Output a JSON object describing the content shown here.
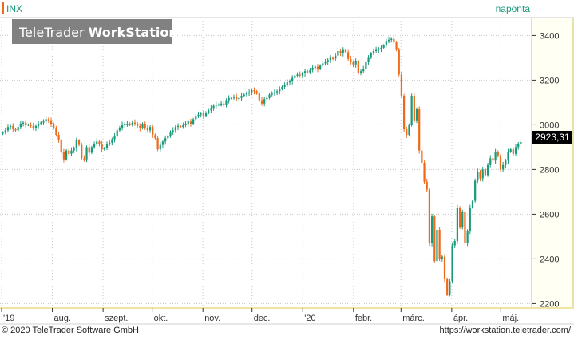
{
  "header": {
    "ticker": "INX",
    "interval": "naponta",
    "logo_regular": "TeleTrader ",
    "logo_bold": "WorkStation"
  },
  "footer": {
    "copyright": "© 2020 TeleTrader Software GmbH",
    "website": "https://workstation.teletrader.com/"
  },
  "colors": {
    "up": "#1a9a7a",
    "down": "#ee6a1a",
    "grid": "#c8c8c8",
    "axis_highlight": "#f2e8a8",
    "logo_bg": "#7a7a7a",
    "price_box": "#000000"
  },
  "chart_data": {
    "type": "candlestick",
    "ticker": "INX",
    "interval": "naponta",
    "ylim": [
      2180,
      3480
    ],
    "y_ticks": [
      2200,
      2400,
      2600,
      2800,
      3000,
      3200,
      3400
    ],
    "x_ticks": [
      {
        "label": "'19",
        "date": "2019-07-01"
      },
      {
        "label": "aug.",
        "date": "2019-08-01"
      },
      {
        "label": "szept.",
        "date": "2019-09-01"
      },
      {
        "label": "okt.",
        "date": "2019-10-01"
      },
      {
        "label": "nov.",
        "date": "2019-11-01"
      },
      {
        "label": "dec.",
        "date": "2019-12-01"
      },
      {
        "label": "'20",
        "date": "2020-01-01"
      },
      {
        "label": "febr.",
        "date": "2020-02-01"
      },
      {
        "label": "márc.",
        "date": "2020-03-01"
      },
      {
        "label": "ápr.",
        "date": "2020-04-01"
      },
      {
        "label": "máj.",
        "date": "2020-05-01"
      }
    ],
    "last_price": "2923,31",
    "closes": [
      2965,
      2975,
      2990,
      2995,
      2980,
      2975,
      2990,
      3005,
      3010,
      3000,
      3000,
      2995,
      2985,
      2995,
      3005,
      3010,
      3015,
      3025,
      3020,
      3005,
      2985,
      2955,
      2930,
      2880,
      2845,
      2885,
      2870,
      2885,
      2895,
      2930,
      2910,
      2850,
      2845,
      2900,
      2875,
      2900,
      2915,
      2925,
      2915,
      2890,
      2895,
      2915,
      2920,
      2935,
      2950,
      2975,
      2985,
      3000,
      3005,
      3005,
      3000,
      3010,
      3005,
      2995,
      2985,
      3005,
      2985,
      2975,
      2990,
      2955,
      2940,
      2890,
      2910,
      2925,
      2940,
      2950,
      2965,
      2975,
      2990,
      2995,
      2990,
      3000,
      3005,
      3015,
      3005,
      3025,
      3040,
      3045,
      3050,
      3040,
      3055,
      3065,
      3075,
      3085,
      3090,
      3090,
      3095,
      3090,
      3110,
      3120,
      3120,
      3125,
      3115,
      3120,
      3130,
      3135,
      3140,
      3145,
      3155,
      3150,
      3140,
      3110,
      3095,
      3115,
      3120,
      3135,
      3140,
      3145,
      3150,
      3160,
      3170,
      3180,
      3190,
      3195,
      3210,
      3220,
      3225,
      3220,
      3230,
      3240,
      3235,
      3245,
      3255,
      3260,
      3250,
      3265,
      3275,
      3280,
      3290,
      3300,
      3295,
      3310,
      3330,
      3320,
      3335,
      3325,
      3295,
      3280,
      3270,
      3285,
      3230,
      3240,
      3250,
      3280,
      3300,
      3320,
      3330,
      3335,
      3340,
      3345,
      3355,
      3375,
      3380,
      3385,
      3370,
      3335,
      3225,
      3130,
      2980,
      2955,
      3000,
      3130,
      3020,
      3070,
      2885,
      2830,
      2745,
      2710,
      2470,
      2590,
      2390,
      2530,
      2400,
      2410,
      2310,
      2240,
      2300,
      2460,
      2480,
      2630,
      2540,
      2610,
      2470,
      2525,
      2630,
      2660,
      2750,
      2790,
      2760,
      2800,
      2775,
      2820,
      2850,
      2840,
      2880,
      2860,
      2800,
      2820,
      2840,
      2880,
      2890,
      2870,
      2900,
      2915,
      2923
    ]
  }
}
